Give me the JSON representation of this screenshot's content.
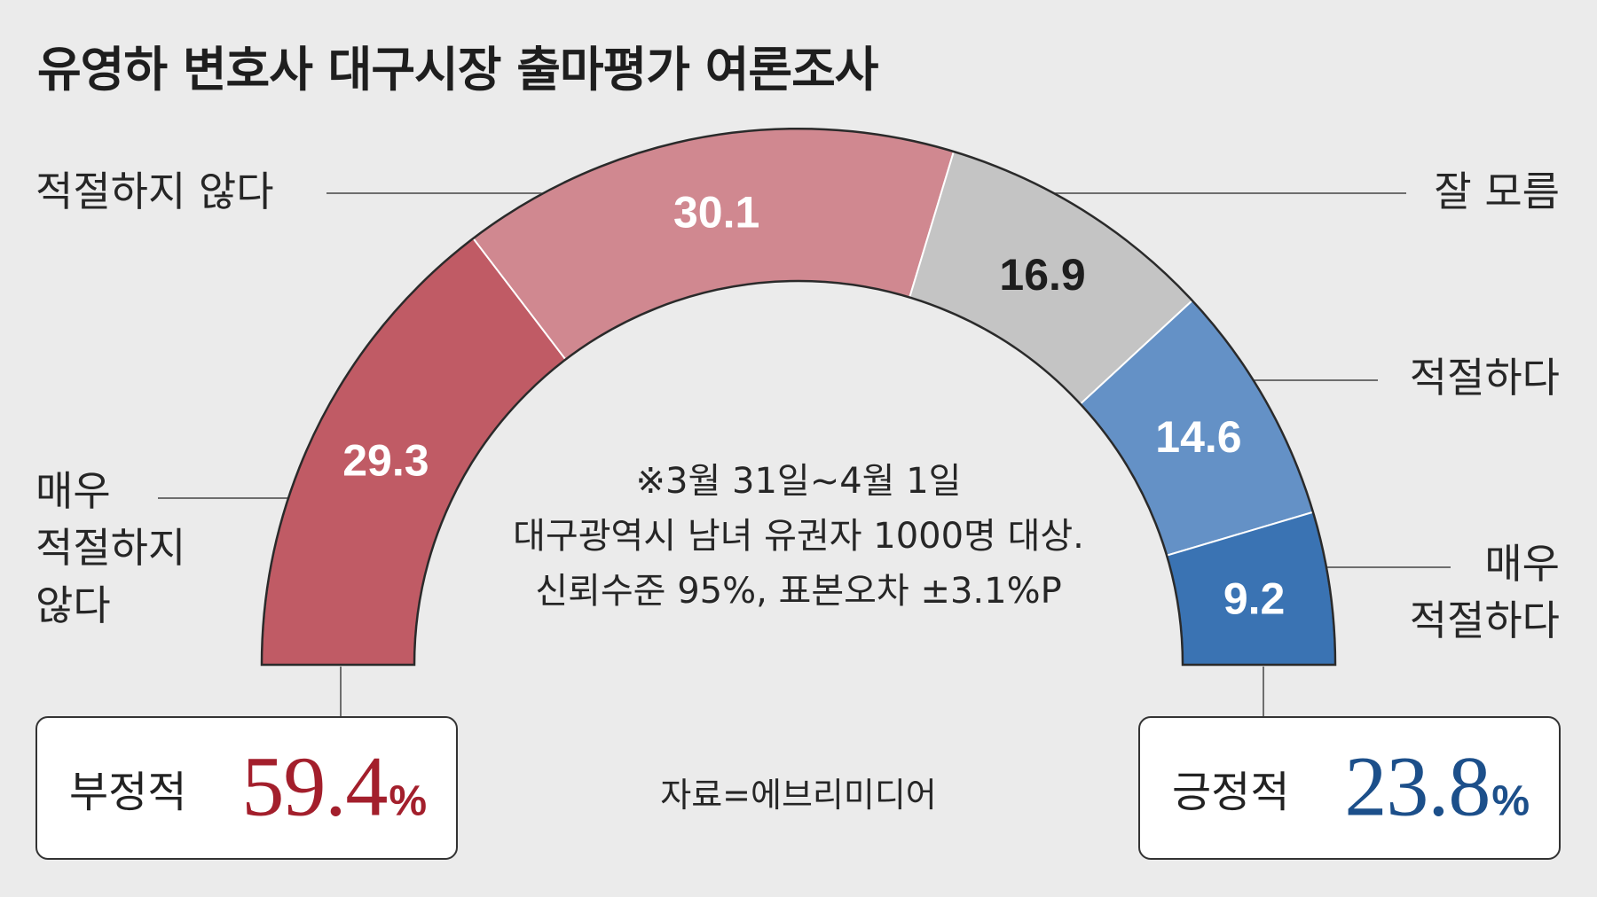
{
  "title": "유영하 변호사 대구시장 출마평가 여론조사",
  "chart_data": {
    "type": "pie",
    "title": "유영하 변호사 대구시장 출마평가 여론조사",
    "categories": [
      "매우 적절하지 않다",
      "적절하지 않다",
      "잘 모름",
      "적절하다",
      "매우 적절하다"
    ],
    "values": [
      29.3,
      30.1,
      16.9,
      14.6,
      9.2
    ],
    "value_labels": [
      "29.3",
      "30.1",
      "16.9",
      "14.6",
      "9.2"
    ],
    "colors": [
      "#c05b65",
      "#d08890",
      "#c4c4c4",
      "#6491c6",
      "#3a73b3"
    ],
    "label_colors": [
      "#ffffff",
      "#ffffff",
      "#1e1e1e",
      "#ffffff",
      "#ffffff"
    ],
    "style": "half-donut",
    "legend": "none"
  },
  "labels": {
    "very_inappropriate": [
      "매우",
      "적절하지",
      "않다"
    ],
    "inappropriate": "적절하지 않다",
    "unknown": "잘 모름",
    "appropriate": "적절하다",
    "very_appropriate": [
      "매우",
      "적절하다"
    ]
  },
  "note": {
    "line1": "※3월 31일~4월 1일",
    "line2": "대구광역시 남녀 유권자 1000명 대상.",
    "line3": "신뢰수준 95%, 표본오차 ±3.1%P"
  },
  "source": "자료=에브리미디어",
  "summary": {
    "negative_label": "부정적",
    "negative_value": "59.4",
    "negative_color": "#a31f2c",
    "positive_label": "긍정적",
    "positive_value": "23.8",
    "positive_color": "#1c4f8a",
    "unit": "%"
  }
}
